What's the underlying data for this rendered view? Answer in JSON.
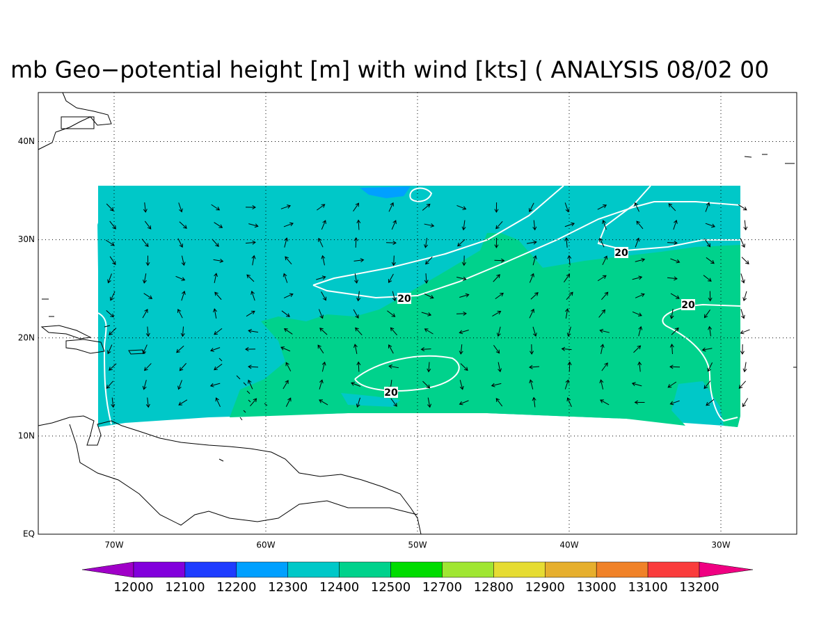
{
  "title": "mb Geo−potential height [m] with wind [kts] ( ANALYSIS 08/02 00",
  "map": {
    "xlim": [
      -75,
      -25
    ],
    "ylim": [
      0,
      45
    ],
    "xticks": [
      {
        "value": -70,
        "label": "70W"
      },
      {
        "value": -60,
        "label": "60W"
      },
      {
        "value": -50,
        "label": "50W"
      },
      {
        "value": -40,
        "label": "40W"
      },
      {
        "value": -30,
        "label": "30W"
      }
    ],
    "yticks": [
      {
        "value": 0,
        "label": "EQ"
      },
      {
        "value": 10,
        "label": "10N"
      },
      {
        "value": 20,
        "label": "20N"
      },
      {
        "value": 30,
        "label": "30N"
      },
      {
        "value": 40,
        "label": "40N"
      }
    ],
    "contour_labels": [
      "20",
      "20",
      "20",
      "20"
    ]
  },
  "colorbar": {
    "levels": [
      12000,
      12100,
      12200,
      12300,
      12400,
      12500,
      12700,
      12800,
      12900,
      13000,
      13100,
      13200
    ],
    "colors": [
      "#a000c8",
      "#8200dc",
      "#1e3cff",
      "#00a0ff",
      "#00c8c8",
      "#00d28c",
      "#00dc00",
      "#a0e632",
      "#e6dc32",
      "#e6af2d",
      "#f08228",
      "#fa3c3c",
      "#f00082"
    ]
  }
}
